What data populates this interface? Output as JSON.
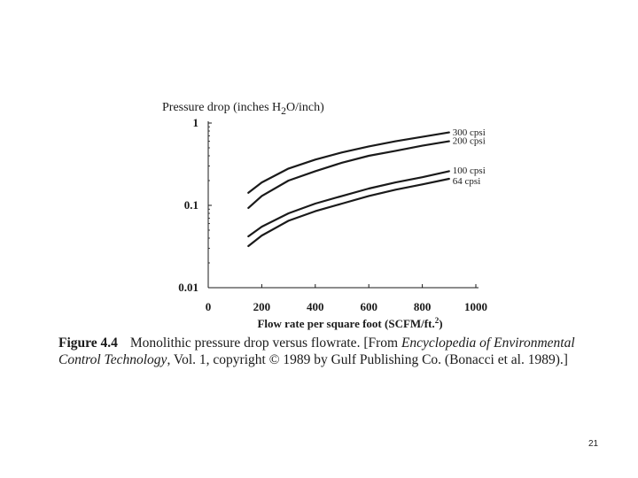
{
  "chart_data": {
    "type": "line",
    "title": "",
    "ylabel_prefix": "Pressure drop (inches H",
    "ylabel_sub": "2",
    "ylabel_suffix": "O/inch)",
    "xlabel_main": "Flow rate per square foot (SCFM/ft.",
    "xlabel_sup": "2",
    "xlabel_end": ")",
    "x_scale": "linear",
    "y_scale": "log",
    "xlim": [
      0,
      1000
    ],
    "ylim": [
      0.01,
      1
    ],
    "x_ticks": [
      "0",
      "200",
      "400",
      "600",
      "800",
      "1000"
    ],
    "x_tick_values": [
      0,
      200,
      400,
      600,
      800,
      1000
    ],
    "y_ticks": [
      "1",
      "0.1",
      "0.01"
    ],
    "y_tick_values": [
      1,
      0.1,
      0.01
    ],
    "grid": false,
    "series": [
      {
        "name": "300 cpsi",
        "x": [
          150,
          200,
          300,
          400,
          500,
          600,
          700,
          800,
          900
        ],
        "y": [
          0.142,
          0.19,
          0.28,
          0.36,
          0.44,
          0.52,
          0.6,
          0.68,
          0.77
        ]
      },
      {
        "name": "200 cpsi",
        "x": [
          150,
          200,
          300,
          400,
          500,
          600,
          700,
          800,
          900
        ],
        "y": [
          0.093,
          0.13,
          0.2,
          0.26,
          0.33,
          0.4,
          0.46,
          0.53,
          0.6
        ]
      },
      {
        "name": "100 cpsi",
        "x": [
          150,
          200,
          300,
          400,
          500,
          600,
          700,
          800,
          900
        ],
        "y": [
          0.042,
          0.055,
          0.08,
          0.105,
          0.13,
          0.16,
          0.19,
          0.22,
          0.26
        ]
      },
      {
        "name": "64 cpsi",
        "x": [
          150,
          200,
          300,
          400,
          500,
          600,
          700,
          800,
          900
        ],
        "y": [
          0.032,
          0.043,
          0.065,
          0.085,
          0.105,
          0.13,
          0.155,
          0.18,
          0.21
        ]
      }
    ],
    "label_lines": [
      {
        "series": 0,
        "text": "300 cpsi",
        "y": 0.78
      },
      {
        "series": 1,
        "text": "200 cpsi",
        "y": 0.62
      },
      {
        "series": 2,
        "text": "100 cpsi",
        "y": 0.27
      },
      {
        "series": 3,
        "text": "64 cpsi",
        "y": 0.2
      }
    ]
  },
  "caption": {
    "figure_label": "Figure 4.4",
    "text_1": "Monolithic pressure drop versus flowrate. [From ",
    "source_italic": "Encyclopedia of Environmental Control Technology",
    "text_2": ", Vol. 1, copyright © 1989 by Gulf Publishing Co. (Bonacci et al. 1989).]"
  },
  "page_number": "21"
}
